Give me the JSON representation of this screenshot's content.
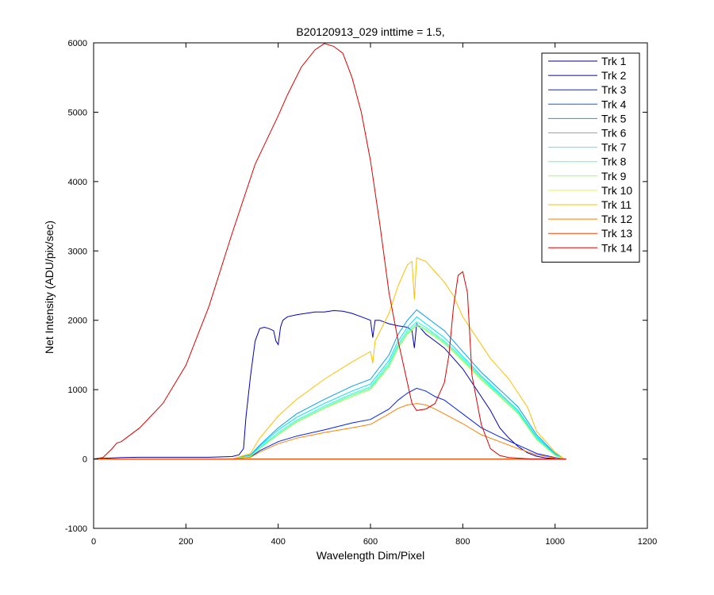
{
  "chart_data": {
    "type": "line",
    "title": "B20120913_029 inttime = 1.5,",
    "xlabel": "Wavelength Dim/Pixel",
    "ylabel": "Net Intensity (ADU/pix/sec)",
    "xlim": [
      0,
      1200
    ],
    "ylim": [
      -1000,
      6000
    ],
    "xticks": [
      0,
      200,
      400,
      600,
      800,
      1000,
      1200
    ],
    "yticks": [
      -1000,
      0,
      1000,
      2000,
      3000,
      4000,
      5000,
      6000
    ],
    "grid": false,
    "legend_position": "top-right",
    "series": [
      {
        "name": "Trk 1",
        "color": "#00008F",
        "x": [
          0,
          1024
        ],
        "y": [
          0,
          0
        ]
      },
      {
        "name": "Trk 2",
        "color": "#0000BF",
        "x": [
          0,
          20,
          60,
          100,
          150,
          200,
          250,
          300,
          315,
          325,
          330,
          340,
          350,
          360,
          370,
          380,
          390,
          395,
          400,
          405,
          410,
          420,
          440,
          460,
          480,
          500,
          520,
          540,
          560,
          580,
          600,
          605,
          610,
          620,
          640,
          660,
          680,
          690,
          695,
          700,
          720,
          740,
          760,
          780,
          800,
          820,
          840,
          860,
          880,
          900,
          920,
          940,
          960,
          980,
          1000,
          1020
        ],
        "y": [
          0,
          10,
          20,
          25,
          25,
          25,
          25,
          35,
          60,
          150,
          600,
          1200,
          1700,
          1880,
          1900,
          1880,
          1850,
          1700,
          1650,
          1900,
          2000,
          2050,
          2080,
          2100,
          2120,
          2120,
          2140,
          2130,
          2100,
          2050,
          2000,
          1750,
          2000,
          2000,
          1950,
          1920,
          1900,
          1850,
          1600,
          1950,
          1800,
          1700,
          1600,
          1450,
          1300,
          1100,
          900,
          700,
          450,
          300,
          180,
          90,
          40,
          15,
          5,
          0
        ]
      },
      {
        "name": "Trk 3",
        "color": "#0020FF",
        "x": [
          0,
          300,
          340,
          360,
          400,
          440,
          500,
          560,
          600,
          640,
          660,
          680,
          700,
          720,
          740,
          760,
          780,
          800,
          840,
          880,
          920,
          960,
          1000,
          1020
        ],
        "y": [
          0,
          0,
          30,
          120,
          250,
          330,
          420,
          520,
          570,
          720,
          850,
          950,
          1020,
          980,
          900,
          850,
          750,
          650,
          450,
          320,
          200,
          80,
          20,
          0
        ]
      },
      {
        "name": "Trk 4",
        "color": "#0060FF",
        "x": [
          0,
          1024
        ],
        "y": [
          0,
          0
        ]
      },
      {
        "name": "Trk 5",
        "color": "#00A0FF",
        "x": [
          0,
          300,
          340,
          360,
          400,
          440,
          500,
          560,
          600,
          640,
          660,
          680,
          700,
          720,
          740,
          760,
          780,
          800,
          840,
          880,
          920,
          960,
          1000,
          1020
        ],
        "y": [
          0,
          0,
          60,
          200,
          450,
          650,
          860,
          1050,
          1150,
          1500,
          1800,
          2000,
          2150,
          2050,
          1950,
          1850,
          1700,
          1550,
          1250,
          1000,
          750,
          350,
          80,
          0
        ]
      },
      {
        "name": "Trk 6",
        "color": "#00E0FF",
        "x": [
          0,
          300,
          340,
          360,
          400,
          440,
          500,
          560,
          600,
          640,
          660,
          680,
          700,
          720,
          740,
          760,
          780,
          800,
          840,
          880,
          920,
          960,
          1000,
          1020
        ],
        "y": [
          0,
          0,
          50,
          180,
          420,
          600,
          800,
          980,
          1080,
          1420,
          1700,
          1900,
          2050,
          1950,
          1850,
          1750,
          1620,
          1480,
          1200,
          950,
          700,
          320,
          70,
          0
        ]
      },
      {
        "name": "Trk 7",
        "color": "#20FFDF",
        "x": [
          0,
          300,
          340,
          360,
          400,
          440,
          500,
          560,
          600,
          640,
          660,
          680,
          700,
          720,
          740,
          760,
          780,
          800,
          840,
          880,
          920,
          960,
          1000,
          1020
        ],
        "y": [
          0,
          0,
          45,
          160,
          380,
          560,
          760,
          940,
          1040,
          1380,
          1650,
          1850,
          1980,
          1900,
          1800,
          1700,
          1580,
          1450,
          1180,
          930,
          680,
          300,
          60,
          0
        ]
      },
      {
        "name": "Trk 8",
        "color": "#60FF9F",
        "x": [
          0,
          300,
          340,
          360,
          400,
          440,
          500,
          560,
          600,
          640,
          660,
          680,
          700,
          720,
          740,
          760,
          780,
          800,
          840,
          880,
          920,
          960,
          1000,
          1020
        ],
        "y": [
          0,
          0,
          40,
          150,
          360,
          540,
          740,
          920,
          1020,
          1350,
          1620,
          1820,
          1940,
          1870,
          1780,
          1680,
          1560,
          1430,
          1160,
          910,
          660,
          290,
          55,
          0
        ]
      },
      {
        "name": "Trk 9",
        "color": "#A0FF5F",
        "x": [
          0,
          300,
          340,
          360,
          400,
          440,
          500,
          560,
          600,
          640,
          660,
          680,
          700,
          720,
          740,
          760,
          780,
          800,
          840,
          880,
          920,
          960,
          1000,
          1020
        ],
        "y": [
          0,
          0,
          40,
          150,
          350,
          530,
          730,
          900,
          1000,
          1330,
          1600,
          1800,
          1920,
          1850,
          1760,
          1660,
          1540,
          1410,
          1140,
          900,
          650,
          280,
          50,
          0
        ]
      },
      {
        "name": "Trk 10",
        "color": "#E0FF1F",
        "x": [
          0,
          1024
        ],
        "y": [
          0,
          0
        ]
      },
      {
        "name": "Trk 11",
        "color": "#FFBF00",
        "x": [
          0,
          300,
          340,
          360,
          400,
          440,
          500,
          560,
          600,
          605,
          610,
          640,
          660,
          680,
          690,
          695,
          700,
          720,
          740,
          760,
          780,
          800,
          840,
          860,
          880,
          900,
          920,
          940,
          960,
          1000,
          1020
        ],
        "y": [
          0,
          0,
          80,
          300,
          620,
          860,
          1150,
          1400,
          1550,
          1380,
          1700,
          2100,
          2500,
          2800,
          2850,
          2300,
          2900,
          2850,
          2700,
          2550,
          2350,
          2050,
          1650,
          1450,
          1300,
          1150,
          950,
          750,
          400,
          100,
          0
        ]
      },
      {
        "name": "Trk 12",
        "color": "#FF7F00",
        "x": [
          0,
          300,
          340,
          360,
          400,
          440,
          500,
          560,
          600,
          640,
          660,
          680,
          700,
          720,
          740,
          760,
          780,
          800,
          840,
          880,
          920,
          960,
          1000,
          1020
        ],
        "y": [
          0,
          0,
          25,
          100,
          220,
          300,
          380,
          450,
          500,
          650,
          730,
          780,
          800,
          780,
          720,
          650,
          580,
          510,
          350,
          250,
          150,
          60,
          15,
          0
        ]
      },
      {
        "name": "Trk 13",
        "color": "#FF3F00",
        "x": [
          0,
          1024
        ],
        "y": [
          0,
          0
        ]
      },
      {
        "name": "Trk 14",
        "color": "#DF0000",
        "x": [
          0,
          20,
          40,
          50,
          60,
          70,
          100,
          150,
          200,
          250,
          300,
          350,
          400,
          420,
          450,
          480,
          500,
          520,
          540,
          560,
          580,
          600,
          620,
          640,
          660,
          680,
          690,
          700,
          720,
          740,
          760,
          770,
          780,
          790,
          800,
          810,
          820,
          840,
          860,
          880,
          900,
          950,
          1000,
          1024
        ],
        "y": [
          0,
          20,
          150,
          230,
          250,
          300,
          450,
          800,
          1350,
          2200,
          3250,
          4250,
          4950,
          5250,
          5650,
          5900,
          5990,
          5950,
          5850,
          5500,
          5000,
          4300,
          3400,
          2400,
          1700,
          1100,
          800,
          700,
          720,
          800,
          1100,
          1500,
          2200,
          2650,
          2700,
          2400,
          1200,
          500,
          150,
          50,
          20,
          0,
          0,
          0
        ]
      }
    ]
  }
}
